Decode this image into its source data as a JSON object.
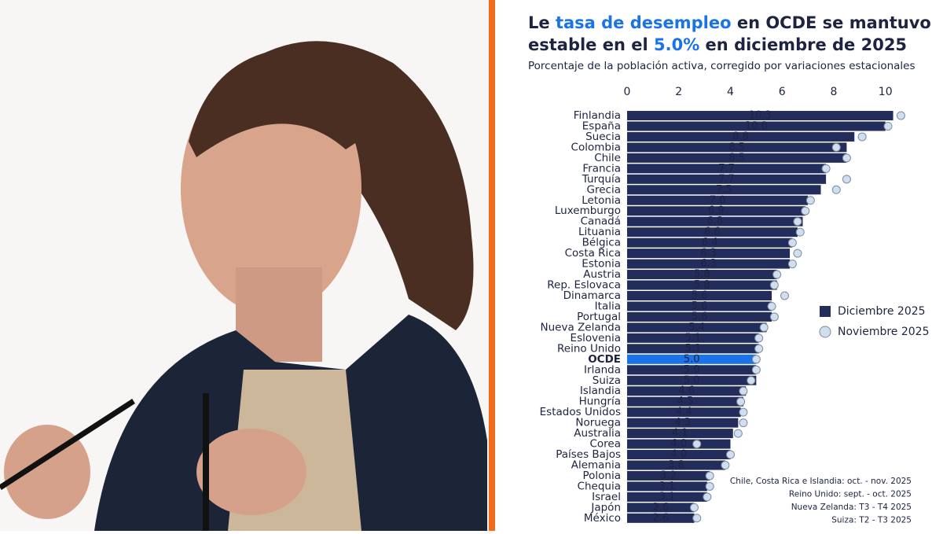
{
  "chart_data": {
    "type": "bar",
    "title_lines": [
      [
        {
          "text": "Le ",
          "highlight": false
        },
        {
          "text": "tasa de desempleo",
          "highlight": true
        },
        {
          "text": " en OCDE se mantuvo",
          "highlight": false
        }
      ],
      [
        {
          "text": "estable en el ",
          "highlight": false
        },
        {
          "text": "5.0%",
          "highlight": true
        },
        {
          "text": " en diciembre de 2025",
          "highlight": false
        }
      ]
    ],
    "highlight_color": "#1a73e8",
    "subtitle": "Porcentaje de la población activa, corregido por variaciones estacionales",
    "categories": [
      "Finlandia",
      "España",
      "Suecia",
      "Colombia",
      "Chile",
      "Francia",
      "Turquía",
      "Grecia",
      "Letonia",
      "Luxemburgo",
      "Canadá",
      "Lituania",
      "Bélgica",
      "Costa Rica",
      "Estonia",
      "Austria",
      "Rep. Eslovaca",
      "Dinamarca",
      "Italia",
      "Portugal",
      "Nueva Zelanda",
      "Eslovenia",
      "Reino Unido",
      "OCDE",
      "Irlanda",
      "Suiza",
      "Islandia",
      "Hungría",
      "Estados Unidos",
      "Noruega",
      "Australia",
      "Corea",
      "Países Bajos",
      "Alemania",
      "Polonia",
      "Chequia",
      "Israel",
      "Japón",
      "México"
    ],
    "highlight_index": 23,
    "series": [
      {
        "name": "Diciembre 2025",
        "color": "#232d5c",
        "style": "bar",
        "values": [
          10.3,
          10.0,
          8.8,
          8.5,
          8.5,
          7.7,
          7.7,
          7.5,
          7.0,
          6.9,
          6.8,
          6.6,
          6.4,
          6.3,
          6.3,
          5.8,
          5.8,
          5.6,
          5.6,
          5.6,
          5.4,
          5.1,
          5.1,
          5.0,
          5.0,
          5.0,
          4.6,
          4.5,
          4.4,
          4.3,
          4.1,
          4.0,
          4.0,
          3.8,
          3.2,
          3.1,
          3.1,
          2.6,
          2.6
        ],
        "value_labels": [
          "10.3",
          "10.0",
          "8.8",
          "8.5",
          "8.5",
          "7.7",
          "7.7",
          "7.5",
          "7.0",
          "6.9",
          "6.8",
          "6.6",
          "6.4",
          "6.3",
          "6.3",
          "5.8",
          "5.8",
          "5.6",
          "5.6",
          "5.6",
          "5.4",
          "5.1",
          "5.1",
          "5.0",
          "5.0",
          "5.0",
          "4.6",
          "4.5",
          "4.4",
          "4.3",
          "4.1",
          "4.0",
          "4.0",
          "3.8",
          "3.2",
          "3.1",
          "3.1",
          "2.6",
          "2.6"
        ]
      },
      {
        "name": "Noviembre 2025",
        "color": "#cfdff0",
        "style": "dot",
        "values": [
          10.6,
          10.1,
          9.1,
          8.1,
          8.5,
          7.7,
          8.5,
          8.1,
          7.1,
          6.9,
          6.6,
          6.7,
          6.4,
          6.6,
          6.4,
          5.8,
          5.7,
          6.1,
          5.6,
          5.7,
          5.3,
          5.1,
          5.1,
          5.0,
          5.0,
          4.8,
          4.5,
          4.4,
          4.5,
          4.5,
          4.3,
          2.7,
          4.0,
          3.8,
          3.2,
          3.2,
          3.1,
          2.6,
          2.7
        ]
      }
    ],
    "xlim": [
      0,
      10.8
    ],
    "xticks": [
      0,
      2,
      4,
      6,
      8,
      10
    ],
    "notes": [
      "Chile, Costa Rica e Islandia: oct. - nov. 2025",
      "Reino Unido: sept. - oct. 2025",
      "Nueva Zelanda: T3 - T4 2025",
      "Suiza: T2 - T3 2025"
    ]
  }
}
